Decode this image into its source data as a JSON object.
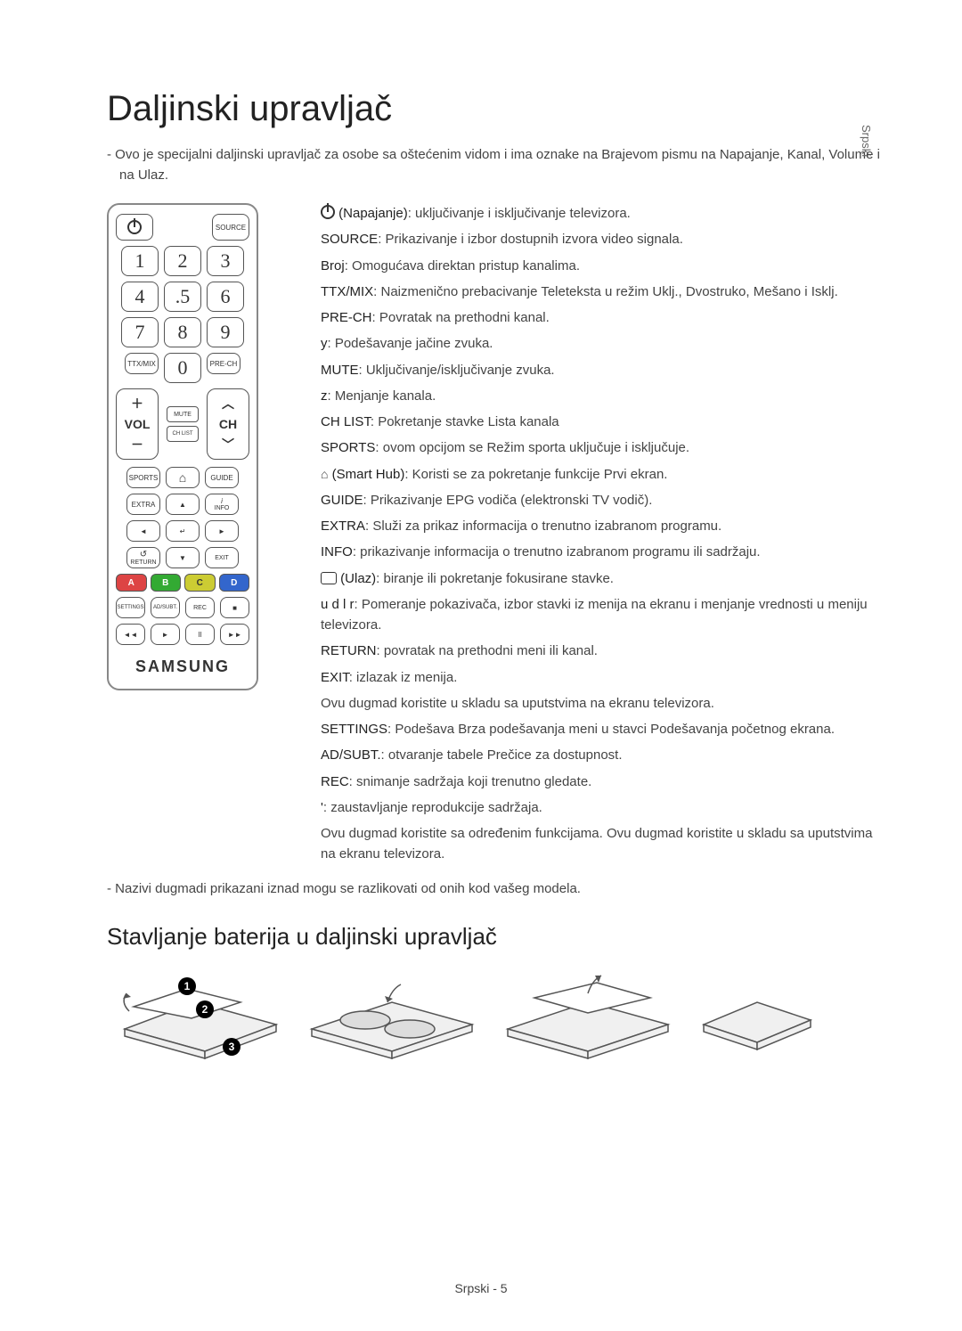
{
  "side_label": "Srpski",
  "title": "Daljinski upravljač",
  "intro": "Ovo je specijalni daljinski upravljač za osobe sa oštećenim vidom i ima oznake na Brajevom pismu na Napajanje, Kanal, Volume i na Ulaz.",
  "remote": {
    "source": "SOURCE",
    "numbers": [
      "1",
      "2",
      "3",
      "4",
      ".5",
      "6",
      "7",
      "8",
      "9",
      "0"
    ],
    "ttx": "TTX/MIX",
    "prech": "PRE-CH",
    "mute": "MUTE",
    "vol": "VOL",
    "ch": "CH",
    "chlist": "CH LIST",
    "sports": "SPORTS",
    "guide": "GUIDE",
    "extra": "EXTRA",
    "info": "INFO",
    "return": "RETURN",
    "exit": "EXIT",
    "colors": [
      "A",
      "B",
      "C",
      "D"
    ],
    "settings": "SETTINGS",
    "adsubt": "AD/SUBT.",
    "rec": "REC",
    "logo": "SAMSUNG",
    "play_symbols": [
      "◄◄",
      "►",
      "II",
      "►►"
    ]
  },
  "descriptions": [
    {
      "prefix_icon": "power",
      "term": "(Napajanje)",
      "text": ": uključivanje i isključivanje televizora."
    },
    {
      "term": "SOURCE",
      "text": ": Prikazivanje i izbor dostupnih izvora video signala."
    },
    {
      "term": "Broj",
      "text": ": Omogućava direktan pristup kanalima."
    },
    {
      "term": "TTX/MIX",
      "text": ": Naizmenično prebacivanje Teleteksta u režim Uklj., Dvostruko, Mešano i Isklj."
    },
    {
      "term": "PRE-CH",
      "text": ": Povratak na prethodni kanal."
    },
    {
      "term": "y",
      "text": ": Podešavanje jačine zvuka."
    },
    {
      "term": "MUTE",
      "text": ": Uključivanje/isključivanje zvuka."
    },
    {
      "term": "z",
      "text": ": Menjanje kanala."
    },
    {
      "term": "CH LIST",
      "text": ": Pokretanje stavke Lista kanala"
    },
    {
      "term": "SPORTS",
      "text": ": ovom opcijom se Režim sporta uključuje i isključuje."
    },
    {
      "prefix_icon": "home",
      "term": "(Smart Hub)",
      "text": ": Koristi se za pokretanje funkcije Prvi ekran."
    },
    {
      "term": "GUIDE",
      "text": ": Prikazivanje EPG vodiča (elektronski TV vodič)."
    },
    {
      "term": "EXTRA",
      "text": ": Služi za prikaz informacija o trenutno izabranom programu."
    },
    {
      "term": "INFO",
      "text": ": prikazivanje informacija o trenutno izabranom programu ili sadržaju."
    },
    {
      "prefix_icon": "enter",
      "term": "(Ulaz)",
      "text": ": biranje ili pokretanje fokusirane stavke."
    },
    {
      "term": "u d l r",
      "text": ": Pomeranje pokazivača, izbor stavki iz menija na ekranu i menjanje vrednosti u meniju televizora."
    },
    {
      "term": "RETURN",
      "text": ": povratak na prethodni meni ili kanal."
    },
    {
      "term": "EXIT",
      "text": ": izlazak iz menija."
    },
    {
      "term": "",
      "text": "Ovu dugmad koristite u skladu sa uputstvima na ekranu televizora."
    },
    {
      "term": "SETTINGS",
      "text": ": Podešava Brza podešavanja meni u stavci Podešavanja početnog ekrana."
    },
    {
      "term": "AD/SUBT.",
      "text": ": otvaranje tabele Prečice za dostupnost."
    },
    {
      "term": "REC",
      "text": ": snimanje sadržaja koji trenutno gledate."
    },
    {
      "term": "'",
      "text": ": zaustavljanje reprodukcije sadržaja."
    },
    {
      "term": "",
      "text": "Ovu dugmad koristite sa određenim funkcijama. Ovu dugmad koristite u skladu sa uputstvima na ekranu televizora."
    }
  ],
  "note": "Nazivi dugmadi prikazani iznad mogu se razlikovati od onih kod vašeg modela.",
  "subtitle": "Stavljanje baterija u daljinski upravljač",
  "footer": "Srpski - 5"
}
